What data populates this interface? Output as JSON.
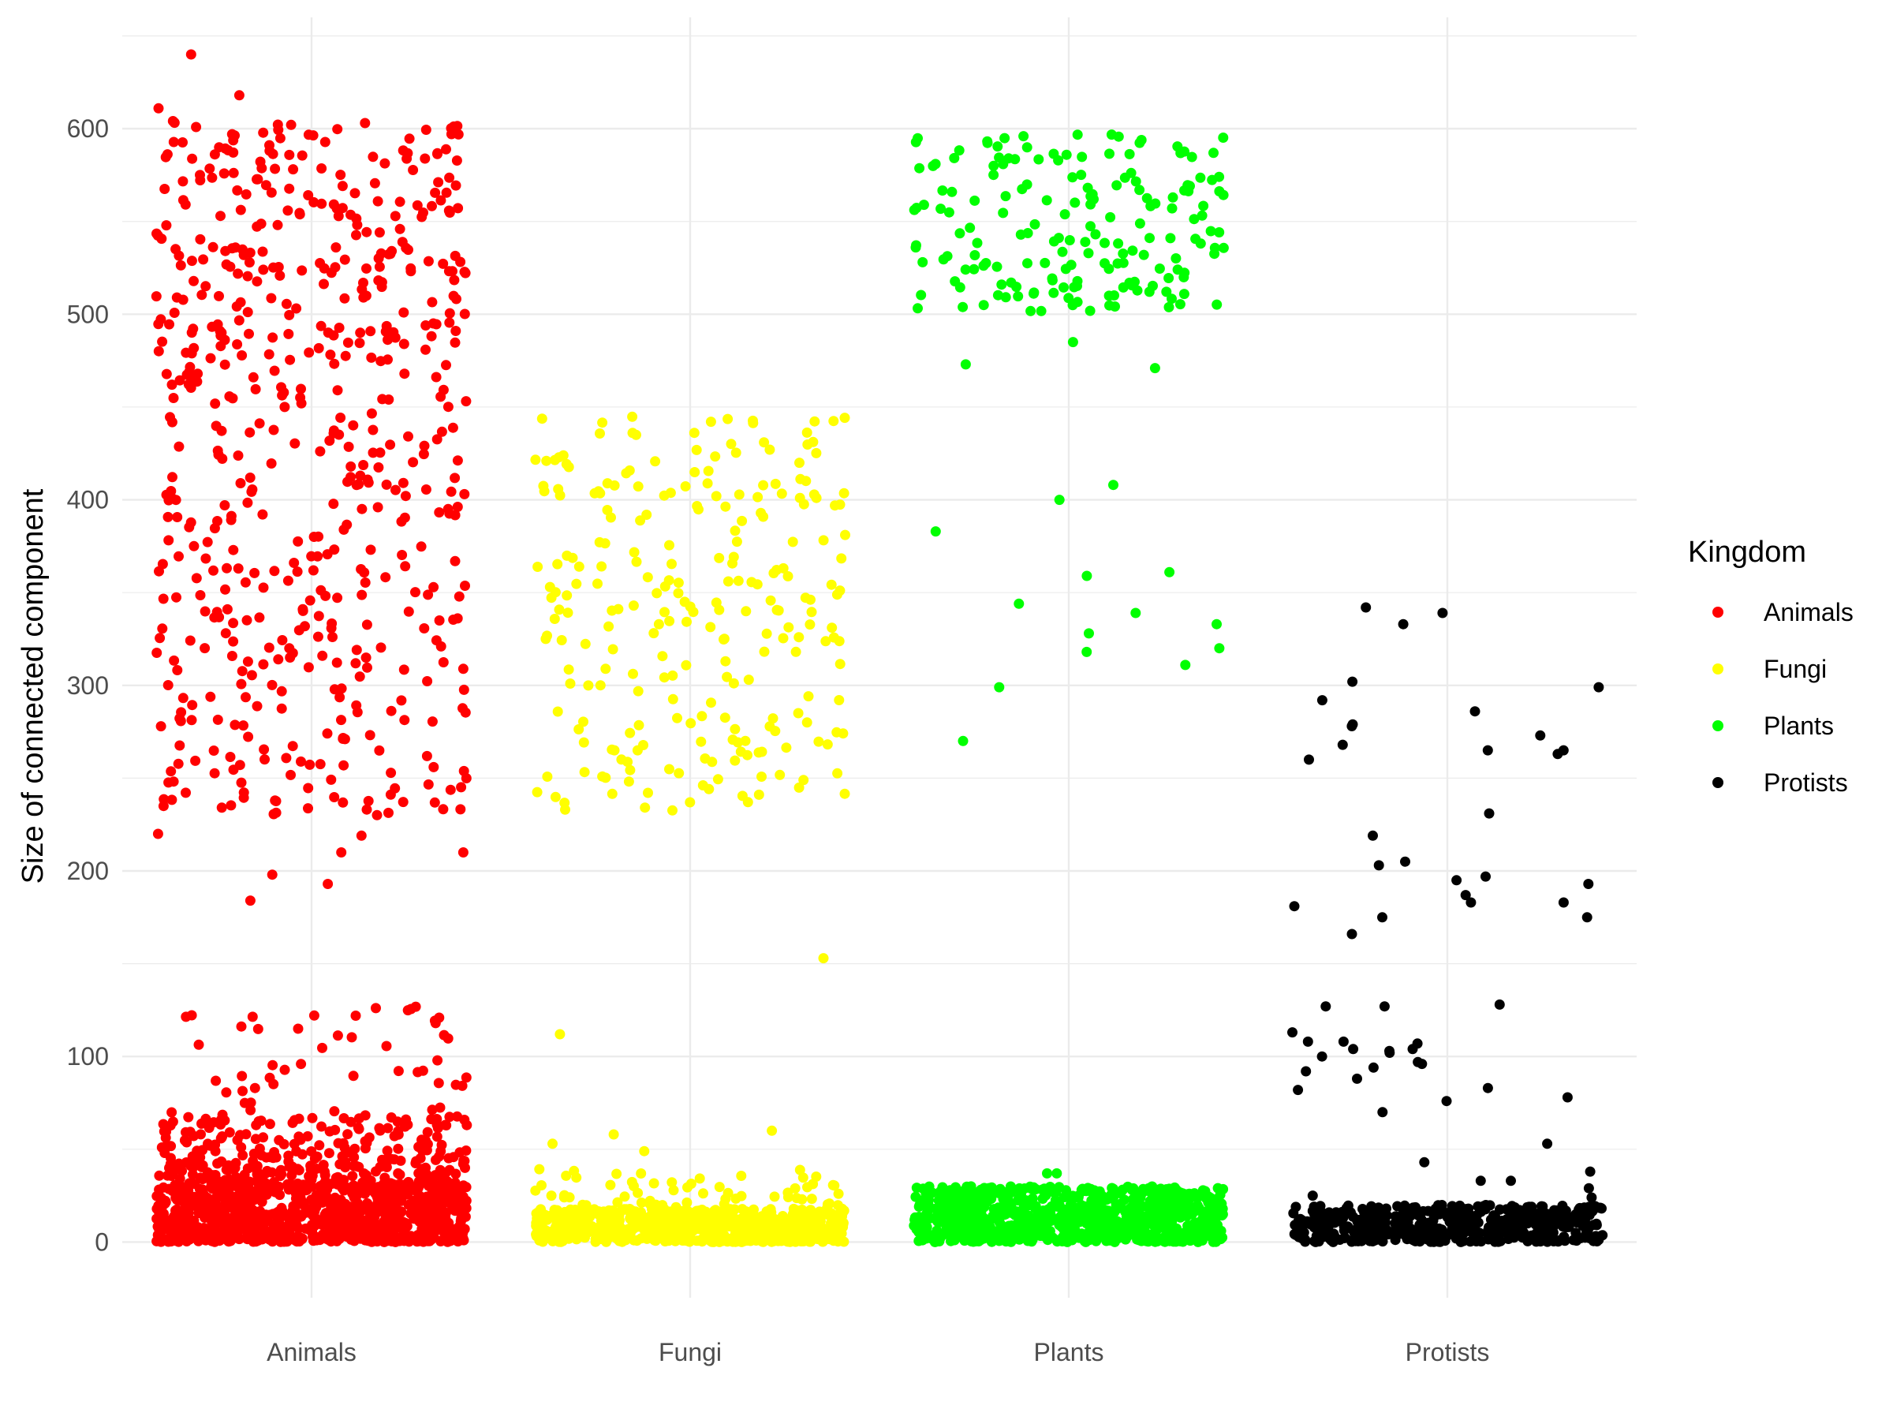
{
  "chart_data": {
    "type": "scatter",
    "subtype": "jitter-strip",
    "title": "",
    "xlabel": "",
    "ylabel": "Size of connected component",
    "ylim": [
      -30,
      660
    ],
    "yticks": [
      0,
      100,
      200,
      300,
      400,
      500,
      600
    ],
    "grid": true,
    "legend": {
      "title": "Kingdom",
      "position": "right"
    },
    "categories": [
      "Animals",
      "Fungi",
      "Plants",
      "Protists"
    ],
    "series": [
      {
        "name": "Animals",
        "color": "#ff0000",
        "clusters": [
          {
            "min": 0,
            "max": 32,
            "count": 900
          },
          {
            "min": 32,
            "max": 68,
            "count": 260
          },
          {
            "min": 68,
            "max": 127,
            "count": 50
          },
          {
            "min": 230,
            "max": 470,
            "count": 320
          },
          {
            "min": 470,
            "max": 605,
            "count": 260
          }
        ],
        "outliers": [
          640,
          618,
          611,
          235,
          220,
          219,
          210,
          210,
          198,
          193,
          184
        ]
      },
      {
        "name": "Fungi",
        "color": "#ffff00",
        "clusters": [
          {
            "min": 0,
            "max": 18,
            "count": 700
          },
          {
            "min": 18,
            "max": 40,
            "count": 60
          },
          {
            "min": 232,
            "max": 445,
            "count": 250
          }
        ],
        "outliers": [
          153,
          112,
          60,
          58,
          53,
          49
        ]
      },
      {
        "name": "Plants",
        "color": "#00ff00",
        "clusters": [
          {
            "min": 0,
            "max": 30,
            "count": 900
          },
          {
            "min": 500,
            "max": 597,
            "count": 180
          }
        ],
        "outliers": [
          485,
          473,
          471,
          408,
          400,
          383,
          361,
          359,
          344,
          339,
          333,
          328,
          320,
          318,
          311,
          299,
          270,
          37,
          37
        ]
      },
      {
        "name": "Protists",
        "color": "#000000",
        "clusters": [
          {
            "min": 0,
            "max": 20,
            "count": 500
          }
        ],
        "outliers": [
          342,
          339,
          333,
          302,
          299,
          292,
          286,
          279,
          278,
          273,
          268,
          265,
          265,
          263,
          260,
          231,
          219,
          205,
          203,
          197,
          195,
          193,
          187,
          183,
          183,
          181,
          175,
          175,
          166,
          128,
          127,
          127,
          113,
          108,
          108,
          107,
          104,
          104,
          103,
          102,
          100,
          97,
          96,
          94,
          92,
          88,
          83,
          82,
          78,
          76,
          70,
          53,
          43,
          38,
          33,
          33,
          29,
          25,
          24
        ]
      }
    ]
  }
}
